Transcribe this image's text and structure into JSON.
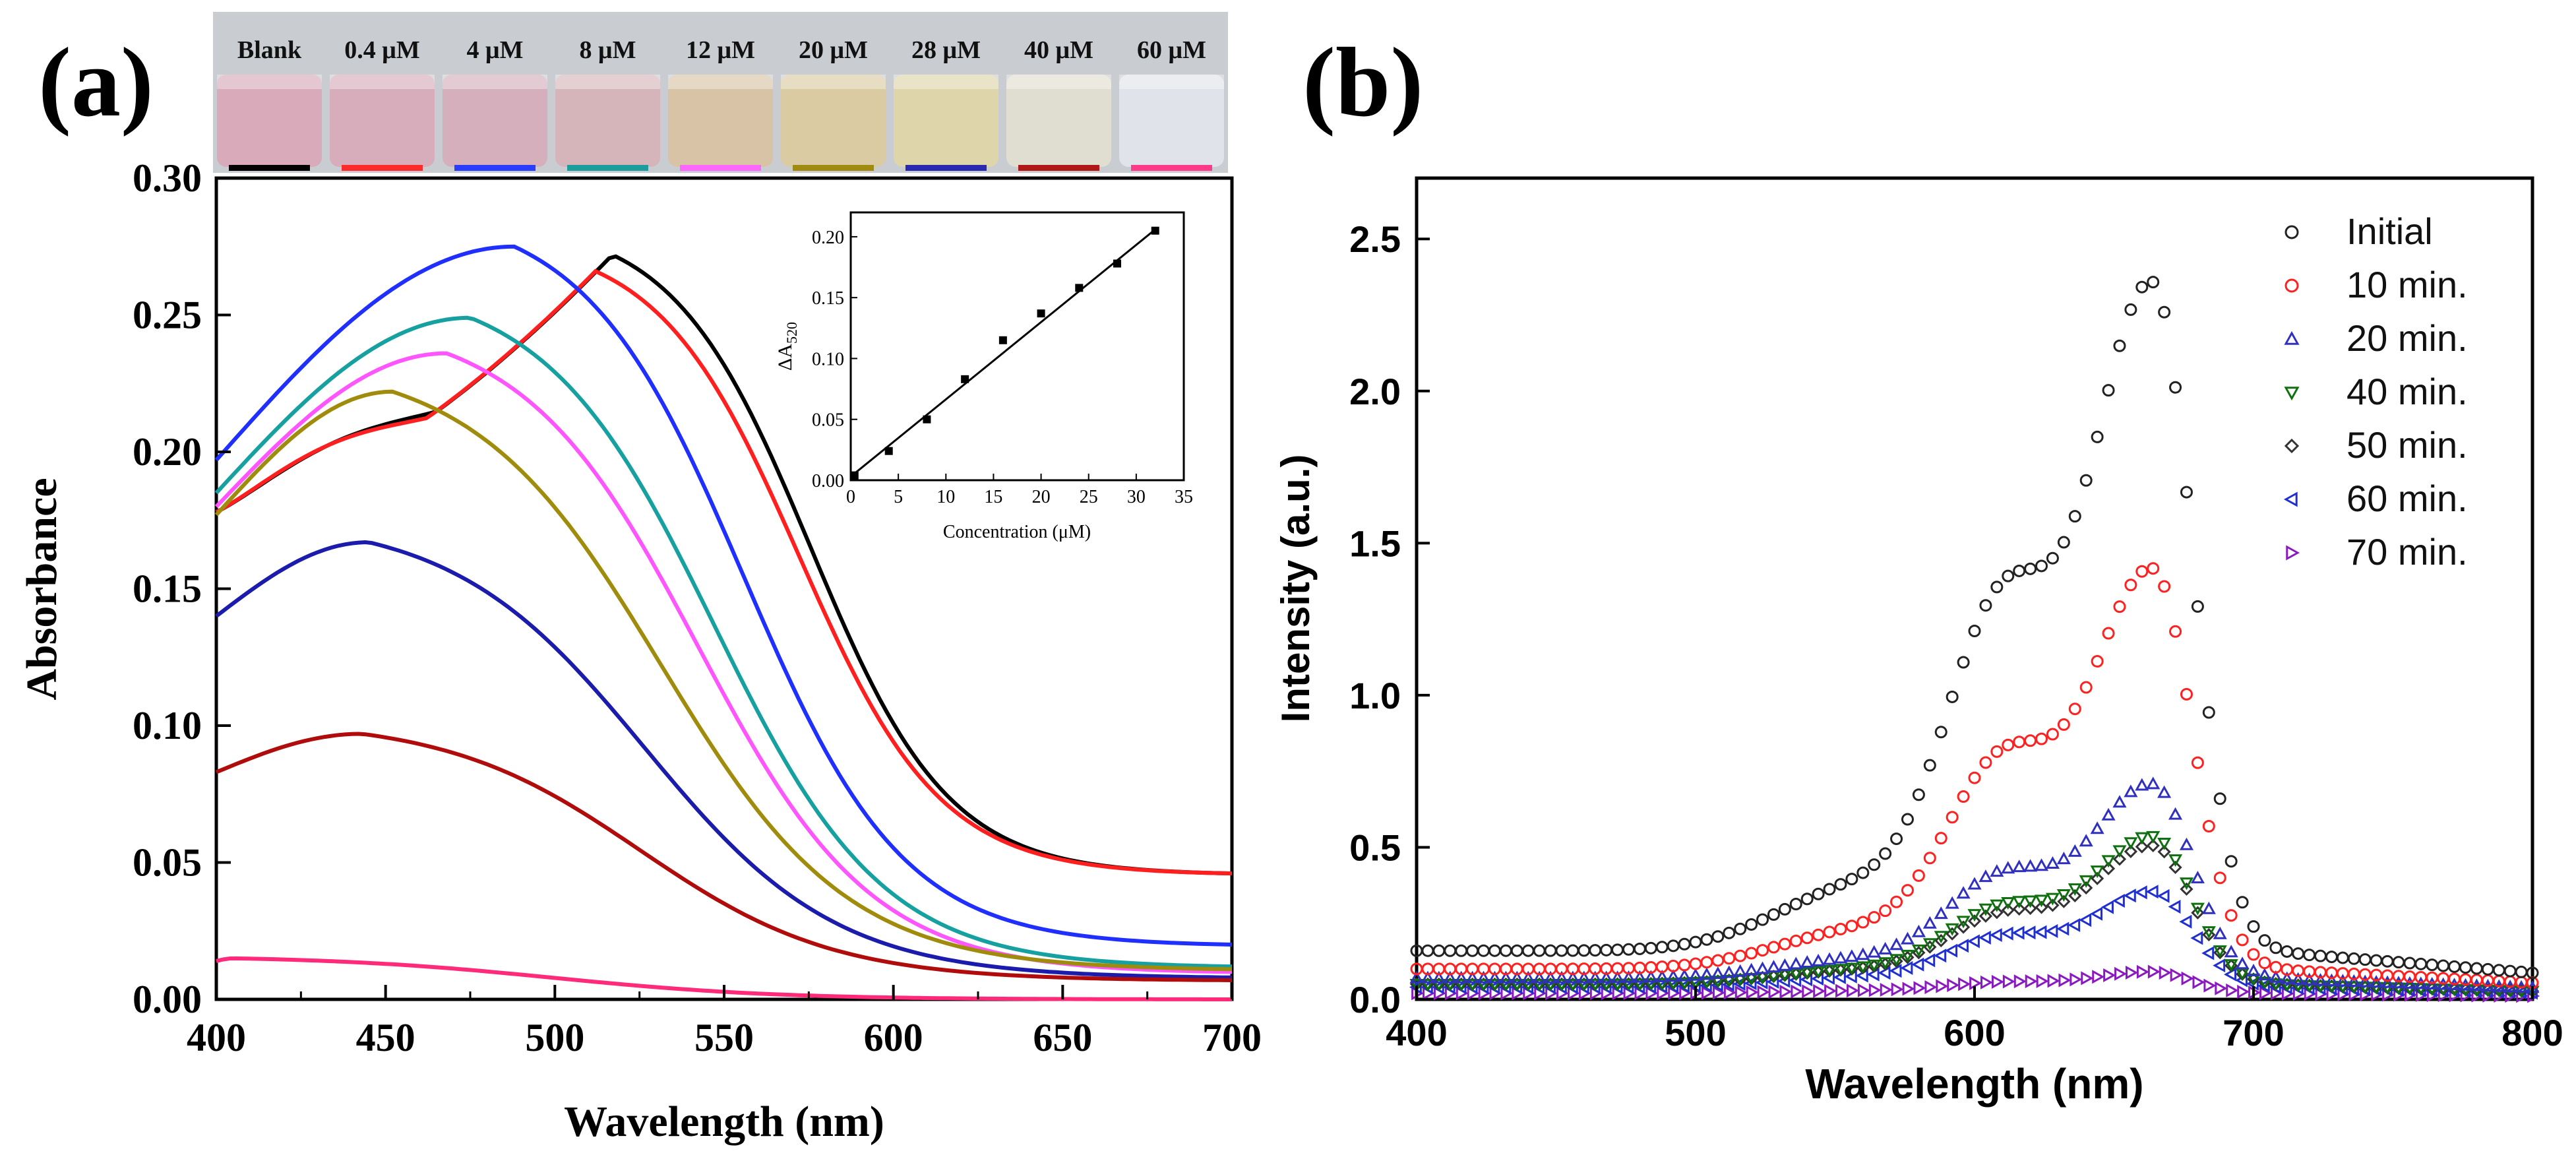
{
  "panel_a_label": "(a)",
  "panel_b_label": "(b)",
  "vials": [
    {
      "label": "Blank",
      "tint": "#d9a8b8",
      "swatch": "#000000"
    },
    {
      "label": "0.4 μM",
      "tint": "#d8aab9",
      "swatch": "#ff2a2a"
    },
    {
      "label": "4 μM",
      "tint": "#d6aebb",
      "swatch": "#2a3cff"
    },
    {
      "label": "8 μM",
      "tint": "#d7b3b8",
      "swatch": "#1c9c9c"
    },
    {
      "label": "12 μM",
      "tint": "#d9c2a4",
      "swatch": "#ff66ff"
    },
    {
      "label": "20 μM",
      "tint": "#dccaa0",
      "swatch": "#a08a10"
    },
    {
      "label": "28 μM",
      "tint": "#dfd5a8",
      "swatch": "#2a2ab0"
    },
    {
      "label": "40 μM",
      "tint": "#e2ded0",
      "swatch": "#b01818"
    },
    {
      "label": "60 μM",
      "tint": "#e2e4ea",
      "swatch": "#ff3a8a"
    }
  ],
  "chart_data": [
    {
      "id": "a_main",
      "type": "line",
      "title": "",
      "xlabel": "Wavelength (nm)",
      "ylabel": "Absorbance",
      "xlim": [
        400,
        700
      ],
      "ylim": [
        0,
        0.3
      ],
      "xticks": [
        "400",
        "450",
        "500",
        "550",
        "600",
        "650",
        "700"
      ],
      "yticks": [
        "0.00",
        "0.05",
        "0.10",
        "0.15",
        "0.20",
        "0.25",
        "0.30"
      ],
      "series": [
        {
          "name": "Blank",
          "color": "#000000",
          "peak_x": 517,
          "peak_y": 0.272,
          "start_y": 0.178,
          "end_y": 0.046,
          "shoulder": 0.205
        },
        {
          "name": "0.4 μM",
          "color": "#ff1f1f",
          "peak_x": 512,
          "peak_y": 0.266,
          "start_y": 0.178,
          "end_y": 0.046,
          "shoulder": 0.205
        },
        {
          "name": "4 μM",
          "color": "#1f2fff",
          "peak_x": 488,
          "peak_y": 0.275,
          "start_y": 0.197,
          "end_y": 0.02,
          "shoulder": 0.0
        },
        {
          "name": "8 μM",
          "color": "#16a0a0",
          "peak_x": 475,
          "peak_y": 0.249,
          "start_y": 0.185,
          "end_y": 0.012,
          "shoulder": 0.0
        },
        {
          "name": "12 μM",
          "color": "#ff55ff",
          "peak_x": 468,
          "peak_y": 0.236,
          "start_y": 0.18,
          "end_y": 0.01,
          "shoulder": 0.0
        },
        {
          "name": "20 μM",
          "color": "#a08c0c",
          "peak_x": 452,
          "peak_y": 0.222,
          "start_y": 0.177,
          "end_y": 0.011,
          "shoulder": 0.0
        },
        {
          "name": "28 μM",
          "color": "#1c1cac",
          "peak_x": 445,
          "peak_y": 0.167,
          "start_y": 0.14,
          "end_y": 0.008,
          "shoulder": 0.0
        },
        {
          "name": "40 μM",
          "color": "#b00c0c",
          "peak_x": 443,
          "peak_y": 0.097,
          "start_y": 0.083,
          "end_y": 0.007,
          "shoulder": 0.0
        },
        {
          "name": "60 μM",
          "color": "#ff2a7a",
          "peak_x": 405,
          "peak_y": 0.015,
          "start_y": 0.014,
          "end_y": 0.0,
          "shoulder": 0.0
        }
      ]
    },
    {
      "id": "a_inset",
      "type": "scatter",
      "xlabel": "Concentration (μM)",
      "ylabel": "ΔA",
      "ylabel_sub": "520",
      "xlim": [
        0,
        35
      ],
      "ylim": [
        0,
        0.22
      ],
      "xticks": [
        "0",
        "5",
        "10",
        "15",
        "20",
        "25",
        "30",
        "35"
      ],
      "yticks": [
        "0.00",
        "0.05",
        "0.10",
        "0.15",
        "0.20"
      ],
      "points": [
        [
          0.4,
          0.004
        ],
        [
          4,
          0.024
        ],
        [
          8,
          0.05
        ],
        [
          12,
          0.083
        ],
        [
          16,
          0.115
        ],
        [
          20,
          0.137
        ],
        [
          24,
          0.158
        ],
        [
          28,
          0.178
        ],
        [
          32,
          0.205
        ]
      ],
      "fit": [
        [
          0,
          0.003
        ],
        [
          32,
          0.206
        ]
      ]
    },
    {
      "id": "b",
      "type": "scatter",
      "title": "",
      "xlabel": "Wavelength (nm)",
      "ylabel": "Intensity (a.u.)",
      "xlim": [
        400,
        800
      ],
      "ylim": [
        0,
        2.7
      ],
      "xticks": [
        "400",
        "500",
        "600",
        "700",
        "800"
      ],
      "yticks": [
        "0.0",
        "0.5",
        "1.0",
        "1.5",
        "2.0",
        "2.5"
      ],
      "legend_position": "top-right",
      "series": [
        {
          "name": "Initial",
          "color": "#222222",
          "marker": "circle",
          "peak": 2.33,
          "shoulder": 1.5,
          "base": 0.16
        },
        {
          "name": "10 min.",
          "color": "#ff2020",
          "marker": "circle",
          "peak": 1.4,
          "shoulder": 0.9,
          "base": 0.1
        },
        {
          "name": "20 min.",
          "color": "#3030c0",
          "marker": "triangle-up",
          "peak": 0.7,
          "shoulder": 0.46,
          "base": 0.07
        },
        {
          "name": "40 min.",
          "color": "#107010",
          "marker": "triangle-down",
          "peak": 0.53,
          "shoulder": 0.34,
          "base": 0.05
        },
        {
          "name": "50 min.",
          "color": "#333333",
          "marker": "diamond",
          "peak": 0.5,
          "shoulder": 0.31,
          "base": 0.05
        },
        {
          "name": "60 min.",
          "color": "#2030d0",
          "marker": "triangle-left",
          "peak": 0.35,
          "shoulder": 0.23,
          "base": 0.04
        },
        {
          "name": "70 min.",
          "color": "#8a1ac0",
          "marker": "triangle-right",
          "peak": 0.09,
          "shoulder": 0.06,
          "base": 0.02
        }
      ]
    }
  ]
}
